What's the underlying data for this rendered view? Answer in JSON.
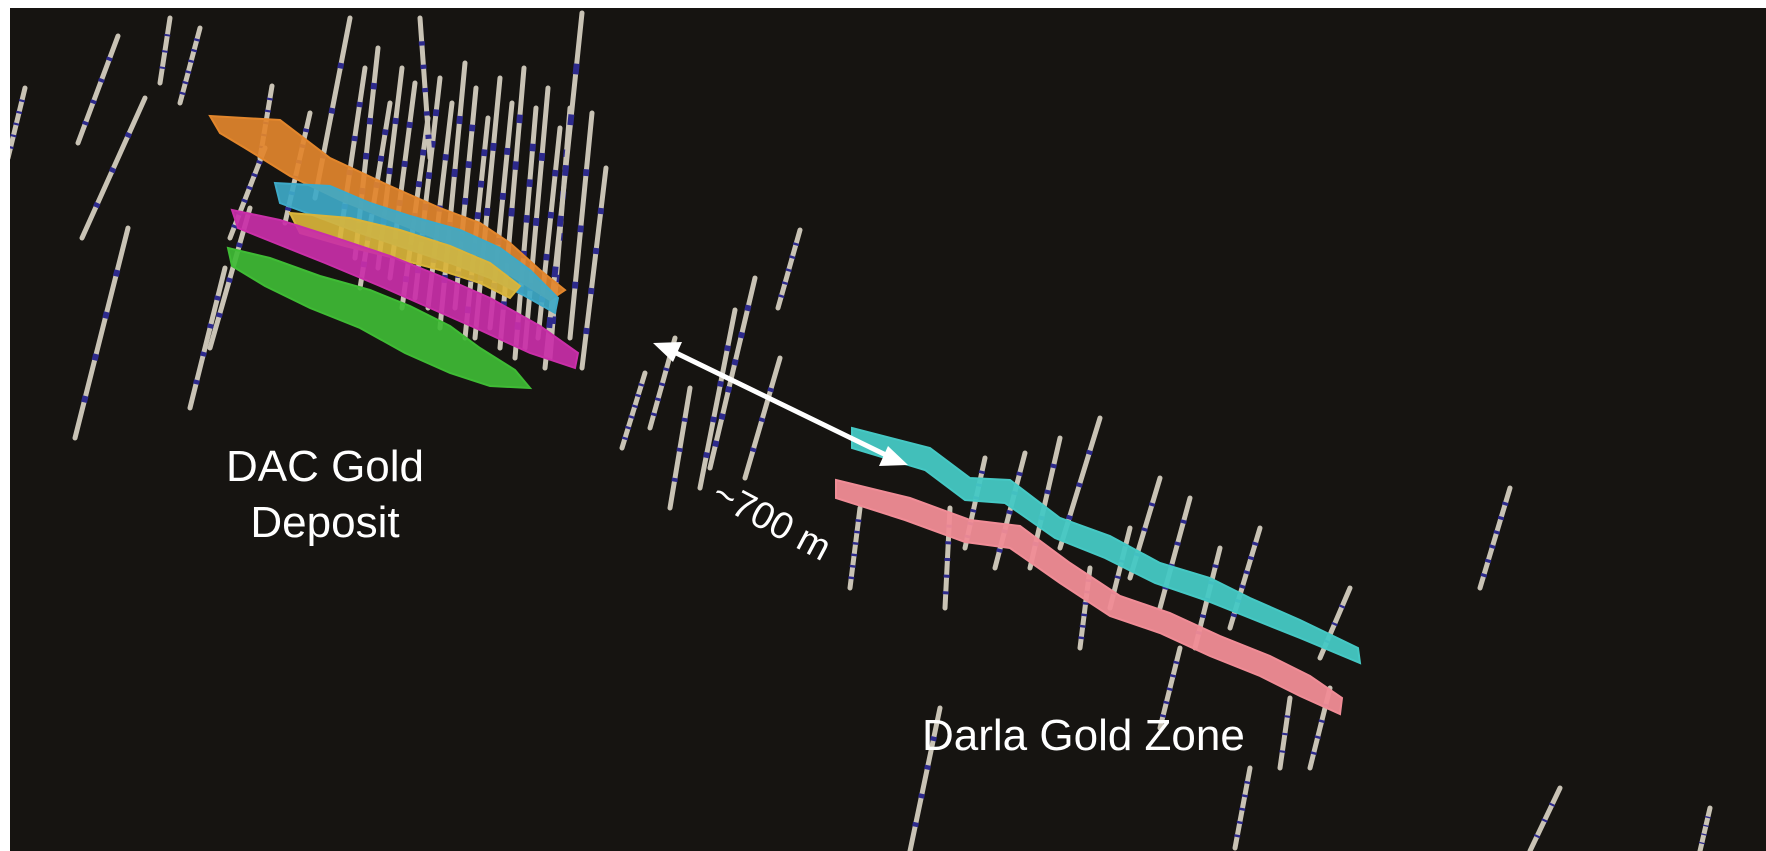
{
  "scene": {
    "background_color": "#161411",
    "frame_color": "#ffffff"
  },
  "labels": {
    "dac_line1": "DAC Gold",
    "dac_line2": "Deposit",
    "darla": "Darla Gold Zone",
    "distance": "~700 m"
  },
  "colors": {
    "drill_hole": "#c9c3b5",
    "drill_assay_band": "#2d2a8c",
    "dac_zones": [
      "#e2862c",
      "#3ea9c7",
      "#d9b43a",
      "#c92fa8",
      "#3fbb35"
    ],
    "darla_zones": [
      "#45c8c4",
      "#f08c96"
    ],
    "arrow": "#ffffff"
  }
}
